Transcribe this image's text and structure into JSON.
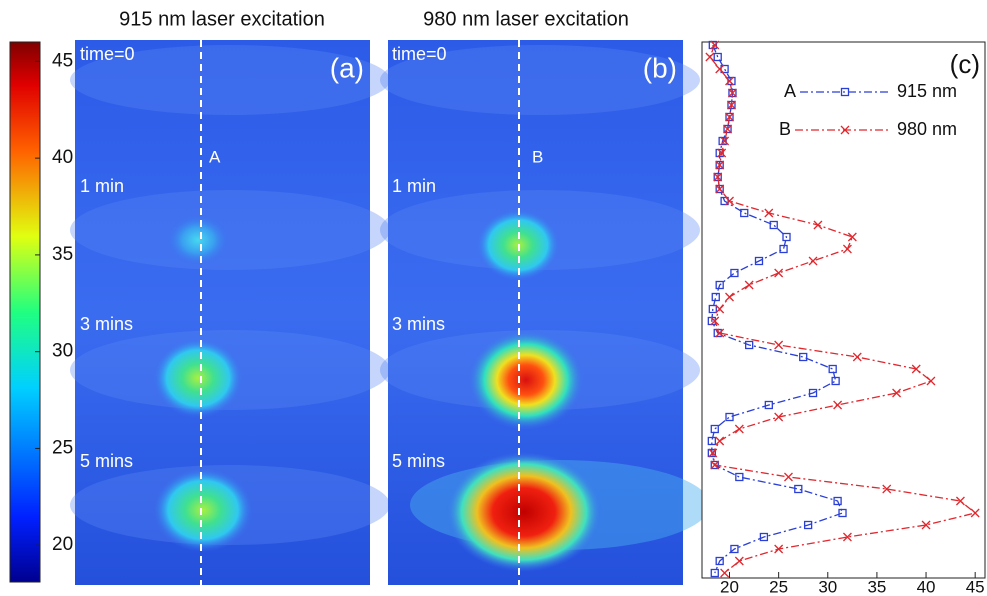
{
  "figure": {
    "panels": [
      {
        "label": "(a)",
        "title": "915 nm laser excitation",
        "line_label": "A"
      },
      {
        "label": "(b)",
        "title": "980 nm laser excitation",
        "line_label": "B"
      }
    ],
    "time_labels": [
      "time=0",
      "1 min",
      "3 mins",
      "5 mins"
    ]
  },
  "colorbar": {
    "lim": [
      18.1,
      46
    ],
    "ticks": [
      20,
      25,
      30,
      35,
      40,
      45
    ]
  },
  "chart_data": {
    "type": "line",
    "label": "(c)",
    "value_axis": "horizontal",
    "x": [
      0,
      1,
      2,
      3,
      4,
      5,
      6,
      7,
      8,
      9,
      10,
      11,
      12,
      13,
      14,
      15,
      16,
      17,
      18,
      19,
      20,
      21,
      22,
      23,
      24,
      25,
      26,
      27,
      28,
      29,
      30,
      31,
      32,
      33,
      34,
      35,
      36,
      37,
      38,
      39,
      40,
      41,
      42,
      43,
      44
    ],
    "xlim": [
      0,
      44
    ],
    "ylim": [
      17.2,
      46
    ],
    "yticks": [
      20,
      25,
      30,
      35,
      40,
      45
    ],
    "series": [
      {
        "name": "915 nm",
        "label": "A",
        "color": "#2a3fd6",
        "marker": "square",
        "values": [
          18.3,
          18.8,
          19.5,
          20.2,
          20.3,
          20.2,
          20.0,
          19.8,
          19.3,
          19.0,
          19.0,
          18.8,
          19.0,
          19.5,
          21.5,
          24.5,
          25.8,
          25.5,
          23.0,
          20.5,
          19.0,
          18.6,
          18.3,
          18.2,
          18.8,
          22.0,
          27.5,
          30.5,
          30.8,
          28.5,
          24.0,
          20.0,
          18.5,
          18.2,
          18.2,
          18.5,
          21.0,
          27.0,
          31.0,
          31.5,
          28.0,
          23.5,
          20.5,
          19.0,
          18.5
        ]
      },
      {
        "name": "980 nm",
        "label": "B",
        "color": "#e0282e",
        "marker": "x",
        "values": [
          18.5,
          18.0,
          19.0,
          20.0,
          20.3,
          20.2,
          20.0,
          19.8,
          19.5,
          19.2,
          19.0,
          18.8,
          19.0,
          20.0,
          24.0,
          29.0,
          32.5,
          32.0,
          28.5,
          25.0,
          22.0,
          20.0,
          19.0,
          18.5,
          19.0,
          25.0,
          33.0,
          39.0,
          40.5,
          37.0,
          31.0,
          25.0,
          21.0,
          19.0,
          18.3,
          18.5,
          26.0,
          36.0,
          43.5,
          45.0,
          40.0,
          32.0,
          25.0,
          21.0,
          19.5
        ]
      }
    ]
  }
}
